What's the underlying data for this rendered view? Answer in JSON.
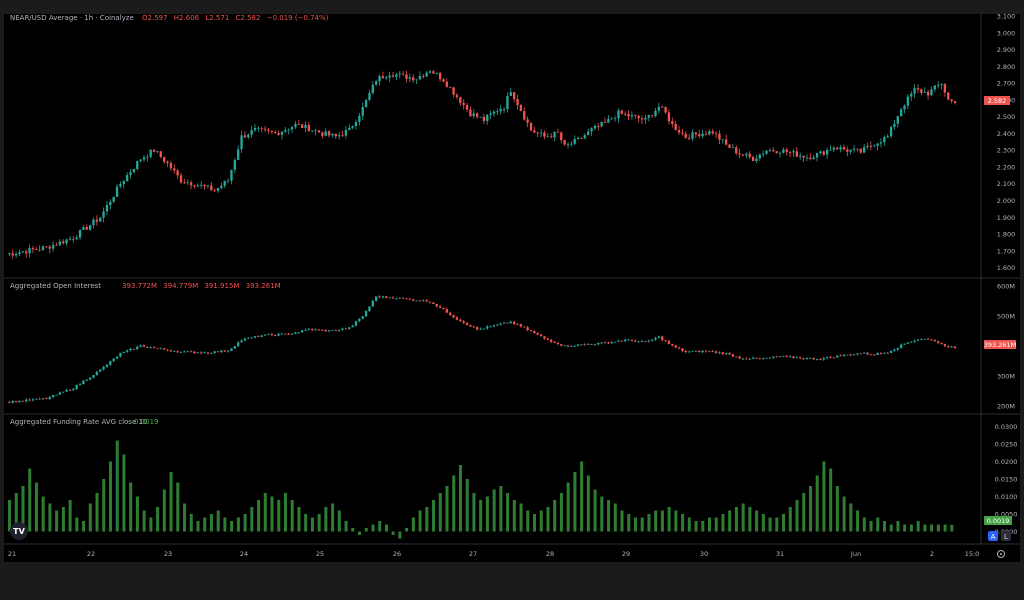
{
  "colors": {
    "up": "#26a69a",
    "down": "#ef5350",
    "funding": "#2e7d32",
    "axis_text": "#b2b5be",
    "divider": "#2a2e39",
    "legend_value_up": "#26a69a",
    "legend_value_down": "#ef5350",
    "legend_value_green": "#4caf50"
  },
  "price_pane": {
    "legend": {
      "title": "NEAR/USD Average · 1h · Coinalyze",
      "values": [
        "O2.597",
        "H2.606",
        "L2.571",
        "C2.582",
        "−0.019 (−0.74%)"
      ]
    },
    "axis_ticks": [
      "3.100",
      "3.000",
      "2.900",
      "2.800",
      "2.700",
      "2.600",
      "2.500",
      "2.400",
      "2.300",
      "2.200",
      "2.100",
      "2.000",
      "1.900",
      "1.800",
      "1.700",
      "1.600"
    ],
    "last_label": "2.582"
  },
  "oi_pane": {
    "legend": {
      "title": "Aggregated Open Interest",
      "values": [
        "393.772M",
        "394.779M",
        "391.915M",
        "393.261M"
      ]
    },
    "axis_ticks": [
      "600M",
      "500M",
      "300M",
      "200M"
    ],
    "last_label": "393.261M"
  },
  "funding_pane": {
    "legend": {
      "title": "Aggregated Funding Rate AVG close 10",
      "value": "0.0019"
    },
    "axis_ticks": [
      "0.0300",
      "0.0250",
      "0.0200",
      "0.0150",
      "0.0100",
      "0.0050",
      "0.0000"
    ],
    "last_label": "0.0019"
  },
  "x_axis": {
    "labels": [
      "21",
      "22",
      "23",
      "24",
      "25",
      "26",
      "27",
      "28",
      "29",
      "30",
      "31",
      "Jun",
      "2"
    ],
    "right_label": "15:0"
  },
  "buttons": {
    "auto": "A",
    "log": "L"
  },
  "logo_text": "TV",
  "chart_data": [
    {
      "type": "candlestick",
      "title": "NEAR/USD Average · 1h · Coinalyze",
      "ylim": [
        1.55,
        3.1
      ],
      "x_labels": [
        "21",
        "22",
        "23",
        "24",
        "25",
        "26",
        "27",
        "28",
        "29",
        "30",
        "31",
        "Jun",
        "2"
      ],
      "close_path": [
        [
          0,
          1.68
        ],
        [
          6,
          1.72
        ],
        [
          10,
          1.78
        ],
        [
          14,
          1.9
        ],
        [
          17,
          2.1
        ],
        [
          20,
          2.25
        ],
        [
          22,
          2.3
        ],
        [
          24,
          2.22
        ],
        [
          26,
          2.12
        ],
        [
          28,
          2.1
        ],
        [
          31,
          2.06
        ],
        [
          33,
          2.12
        ],
        [
          35,
          2.38
        ],
        [
          37,
          2.42
        ],
        [
          40,
          2.4
        ],
        [
          43,
          2.45
        ],
        [
          45,
          2.43
        ],
        [
          47,
          2.4
        ],
        [
          49,
          2.38
        ],
        [
          51,
          2.42
        ],
        [
          53,
          2.55
        ],
        [
          55,
          2.72
        ],
        [
          57,
          2.76
        ],
        [
          59,
          2.74
        ],
        [
          61,
          2.73
        ],
        [
          63,
          2.78
        ],
        [
          65,
          2.72
        ],
        [
          67,
          2.62
        ],
        [
          69,
          2.52
        ],
        [
          71,
          2.48
        ],
        [
          73,
          2.54
        ],
        [
          74,
          2.56
        ],
        [
          75,
          2.66
        ],
        [
          76,
          2.58
        ],
        [
          78,
          2.42
        ],
        [
          80,
          2.38
        ],
        [
          82,
          2.4
        ],
        [
          83,
          2.32
        ],
        [
          85,
          2.36
        ],
        [
          87,
          2.42
        ],
        [
          89,
          2.46
        ],
        [
          91,
          2.52
        ],
        [
          93,
          2.5
        ],
        [
          95,
          2.48
        ],
        [
          97,
          2.56
        ],
        [
          98,
          2.52
        ],
        [
          99,
          2.45
        ],
        [
          101,
          2.38
        ],
        [
          103,
          2.4
        ],
        [
          105,
          2.41
        ],
        [
          107,
          2.33
        ],
        [
          109,
          2.28
        ],
        [
          111,
          2.25
        ],
        [
          113,
          2.3
        ],
        [
          115,
          2.3
        ],
        [
          117,
          2.28
        ],
        [
          119,
          2.26
        ],
        [
          121,
          2.28
        ],
        [
          123,
          2.32
        ],
        [
          125,
          2.3
        ],
        [
          127,
          2.29
        ],
        [
          129,
          2.34
        ],
        [
          131,
          2.38
        ],
        [
          133,
          2.55
        ],
        [
          135,
          2.66
        ],
        [
          137,
          2.64
        ],
        [
          139,
          2.7
        ],
        [
          140,
          2.6
        ],
        [
          141,
          2.582
        ]
      ]
    },
    {
      "type": "candlestick",
      "title": "Aggregated Open Interest",
      "ylim": [
        180,
        620
      ],
      "close_path": [
        [
          0,
          212
        ],
        [
          6,
          225
        ],
        [
          10,
          260
        ],
        [
          14,
          320
        ],
        [
          17,
          375
        ],
        [
          20,
          400
        ],
        [
          23,
          390
        ],
        [
          26,
          380
        ],
        [
          30,
          378
        ],
        [
          33,
          385
        ],
        [
          35,
          420
        ],
        [
          38,
          435
        ],
        [
          42,
          440
        ],
        [
          45,
          455
        ],
        [
          48,
          450
        ],
        [
          51,
          460
        ],
        [
          53,
          500
        ],
        [
          55,
          565
        ],
        [
          58,
          560
        ],
        [
          60,
          555
        ],
        [
          63,
          548
        ],
        [
          65,
          520
        ],
        [
          67,
          490
        ],
        [
          70,
          455
        ],
        [
          73,
          470
        ],
        [
          75,
          480
        ],
        [
          77,
          460
        ],
        [
          80,
          425
        ],
        [
          83,
          400
        ],
        [
          86,
          405
        ],
        [
          89,
          410
        ],
        [
          92,
          420
        ],
        [
          95,
          413
        ],
        [
          97,
          430
        ],
        [
          99,
          400
        ],
        [
          101,
          380
        ],
        [
          104,
          383
        ],
        [
          107,
          375
        ],
        [
          109,
          360
        ],
        [
          112,
          357
        ],
        [
          115,
          365
        ],
        [
          118,
          360
        ],
        [
          121,
          357
        ],
        [
          124,
          368
        ],
        [
          127,
          376
        ],
        [
          129,
          372
        ],
        [
          131,
          380
        ],
        [
          134,
          413
        ],
        [
          136,
          425
        ],
        [
          138,
          418
        ],
        [
          139,
          405
        ],
        [
          141,
          393.261
        ]
      ]
    },
    {
      "type": "bar",
      "title": "Aggregated Funding Rate AVG close 10",
      "ylim": [
        -0.003,
        0.033
      ],
      "last_value": 0.0019,
      "values": [
        0.009,
        0.011,
        0.013,
        0.018,
        0.014,
        0.01,
        0.008,
        0.006,
        0.007,
        0.009,
        0.004,
        0.003,
        0.008,
        0.011,
        0.015,
        0.02,
        0.026,
        0.022,
        0.014,
        0.01,
        0.006,
        0.004,
        0.007,
        0.012,
        0.017,
        0.014,
        0.008,
        0.005,
        0.003,
        0.004,
        0.005,
        0.006,
        0.004,
        0.003,
        0.004,
        0.005,
        0.007,
        0.009,
        0.011,
        0.01,
        0.009,
        0.011,
        0.009,
        0.007,
        0.005,
        0.004,
        0.005,
        0.007,
        0.008,
        0.006,
        0.003,
        0.001,
        -0.001,
        0.001,
        0.002,
        0.003,
        0.002,
        -0.001,
        -0.002,
        0.001,
        0.004,
        0.006,
        0.007,
        0.009,
        0.011,
        0.013,
        0.016,
        0.019,
        0.015,
        0.011,
        0.009,
        0.01,
        0.012,
        0.013,
        0.011,
        0.009,
        0.008,
        0.006,
        0.005,
        0.006,
        0.007,
        0.009,
        0.011,
        0.014,
        0.017,
        0.02,
        0.016,
        0.012,
        0.01,
        0.009,
        0.008,
        0.006,
        0.005,
        0.004,
        0.004,
        0.005,
        0.006,
        0.006,
        0.007,
        0.006,
        0.005,
        0.004,
        0.003,
        0.003,
        0.004,
        0.004,
        0.005,
        0.006,
        0.007,
        0.008,
        0.007,
        0.006,
        0.005,
        0.004,
        0.004,
        0.005,
        0.007,
        0.009,
        0.011,
        0.013,
        0.016,
        0.02,
        0.018,
        0.013,
        0.01,
        0.008,
        0.006,
        0.004,
        0.003,
        0.004,
        0.003,
        0.002,
        0.003,
        0.002,
        0.002,
        0.003,
        0.002,
        0.002,
        0.002,
        0.002,
        0.0019
      ]
    }
  ]
}
